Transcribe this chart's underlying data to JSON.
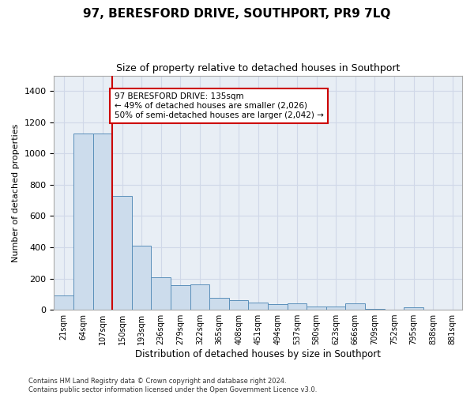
{
  "title": "97, BERESFORD DRIVE, SOUTHPORT, PR9 7LQ",
  "subtitle": "Size of property relative to detached houses in Southport",
  "xlabel": "Distribution of detached houses by size in Southport",
  "ylabel": "Number of detached properties",
  "bar_color": "#ccdcec",
  "bar_edge_color": "#5a8fba",
  "categories": [
    "21sqm",
    "64sqm",
    "107sqm",
    "150sqm",
    "193sqm",
    "236sqm",
    "279sqm",
    "322sqm",
    "365sqm",
    "408sqm",
    "451sqm",
    "494sqm",
    "537sqm",
    "580sqm",
    "623sqm",
    "666sqm",
    "709sqm",
    "752sqm",
    "795sqm",
    "838sqm",
    "881sqm"
  ],
  "values": [
    90,
    1130,
    1130,
    730,
    410,
    210,
    155,
    160,
    75,
    60,
    45,
    35,
    40,
    22,
    20,
    40,
    5,
    0,
    15,
    0,
    0
  ],
  "ylim": [
    0,
    1500
  ],
  "yticks": [
    0,
    200,
    400,
    600,
    800,
    1000,
    1200,
    1400
  ],
  "property_line_x": 2.5,
  "annotation_text": "97 BERESFORD DRIVE: 135sqm\n← 49% of detached houses are smaller (2,026)\n50% of semi-detached houses are larger (2,042) →",
  "annotation_box_color": "#ffffff",
  "annotation_box_edge_color": "#cc0000",
  "footer": "Contains HM Land Registry data © Crown copyright and database right 2024.\nContains public sector information licensed under the Open Government Licence v3.0.",
  "grid_color": "#d0d8e8",
  "fig_bg_color": "#ffffff",
  "plot_bg_color": "#e8eef5"
}
